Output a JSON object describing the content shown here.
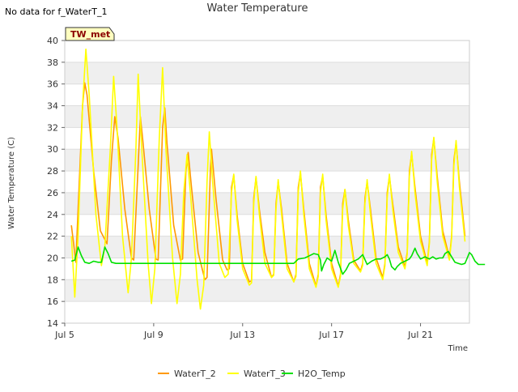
{
  "chart_data": {
    "type": "line",
    "title": "Water Temperature",
    "note": "No data for f_WaterT_1",
    "badge": "TW_met",
    "xlabel": "Time",
    "ylabel": "Water Temperature (C)",
    "xlim": [
      0,
      18.2
    ],
    "ylim": [
      14,
      40
    ],
    "x_ticks": [
      {
        "x": 0,
        "label": "Jul 5"
      },
      {
        "x": 4,
        "label": "Jul 9"
      },
      {
        "x": 8,
        "label": "Jul 13"
      },
      {
        "x": 12,
        "label": "Jul 17"
      },
      {
        "x": 16,
        "label": "Jul 21"
      }
    ],
    "y_ticks": [
      14,
      16,
      18,
      20,
      22,
      24,
      26,
      28,
      30,
      32,
      34,
      36,
      38,
      40
    ],
    "grid": true,
    "legend_position": "bottom-center",
    "colors": {
      "WaterT_2": "#ff9900",
      "WaterT_3": "#ffff00",
      "H2O_Temp": "#00e000",
      "band": "#efefef"
    },
    "series": [
      {
        "name": "WaterT_2",
        "points": [
          [
            0.3,
            23.0
          ],
          [
            0.5,
            19.6
          ],
          [
            0.8,
            34.0
          ],
          [
            0.9,
            36.1
          ],
          [
            1.0,
            35.0
          ],
          [
            1.3,
            28.0
          ],
          [
            1.6,
            22.5
          ],
          [
            1.9,
            21.3
          ],
          [
            2.1,
            29.0
          ],
          [
            2.25,
            33.0
          ],
          [
            2.4,
            31.0
          ],
          [
            2.7,
            24.5
          ],
          [
            3.0,
            20.0
          ],
          [
            3.1,
            19.8
          ],
          [
            3.3,
            28.5
          ],
          [
            3.4,
            33.0
          ],
          [
            3.5,
            31.0
          ],
          [
            3.8,
            24.5
          ],
          [
            4.1,
            19.9
          ],
          [
            4.2,
            19.8
          ],
          [
            4.4,
            32.0
          ],
          [
            4.5,
            33.8
          ],
          [
            4.6,
            30.5
          ],
          [
            4.9,
            23.0
          ],
          [
            5.2,
            19.8
          ],
          [
            5.3,
            19.9
          ],
          [
            5.45,
            28.0
          ],
          [
            5.55,
            29.7
          ],
          [
            5.7,
            26.5
          ],
          [
            6.0,
            20.5
          ],
          [
            6.3,
            18.0
          ],
          [
            6.4,
            18.2
          ],
          [
            6.55,
            28.0
          ],
          [
            6.6,
            30.0
          ],
          [
            6.8,
            25.5
          ],
          [
            7.1,
            19.8
          ],
          [
            7.3,
            18.9
          ],
          [
            7.4,
            19.0
          ],
          [
            7.5,
            26.5
          ],
          [
            7.6,
            27.6
          ],
          [
            7.75,
            24.0
          ],
          [
            8.0,
            19.5
          ],
          [
            8.3,
            17.8
          ],
          [
            8.4,
            17.9
          ],
          [
            8.5,
            25.5
          ],
          [
            8.6,
            27.4
          ],
          [
            8.75,
            24.5
          ],
          [
            9.0,
            20.5
          ],
          [
            9.3,
            18.2
          ],
          [
            9.4,
            18.5
          ],
          [
            9.5,
            25.0
          ],
          [
            9.6,
            27.0
          ],
          [
            9.75,
            24.5
          ],
          [
            10.0,
            19.5
          ],
          [
            10.3,
            17.8
          ],
          [
            10.4,
            18.5
          ],
          [
            10.5,
            26.5
          ],
          [
            10.6,
            27.8
          ],
          [
            10.75,
            24.5
          ],
          [
            11.0,
            19.5
          ],
          [
            11.3,
            17.4
          ],
          [
            11.4,
            18.5
          ],
          [
            11.5,
            26.5
          ],
          [
            11.6,
            27.5
          ],
          [
            11.75,
            24.0
          ],
          [
            12.0,
            19.5
          ],
          [
            12.3,
            17.4
          ],
          [
            12.4,
            18.5
          ],
          [
            12.5,
            25.0
          ],
          [
            12.6,
            26.3
          ],
          [
            12.75,
            23.5
          ],
          [
            13.0,
            19.8
          ],
          [
            13.3,
            18.8
          ],
          [
            13.4,
            19.5
          ],
          [
            13.5,
            25.5
          ],
          [
            13.6,
            27.0
          ],
          [
            13.75,
            24.5
          ],
          [
            14.0,
            20.0
          ],
          [
            14.3,
            18.2
          ],
          [
            14.4,
            19.5
          ],
          [
            14.5,
            26.0
          ],
          [
            14.6,
            27.5
          ],
          [
            14.75,
            25.0
          ],
          [
            15.0,
            21.0
          ],
          [
            15.3,
            19.2
          ],
          [
            15.4,
            20.5
          ],
          [
            15.5,
            28.0
          ],
          [
            15.6,
            29.6
          ],
          [
            15.75,
            26.5
          ],
          [
            16.0,
            22.0
          ],
          [
            16.3,
            19.5
          ],
          [
            16.4,
            21.5
          ],
          [
            16.5,
            29.5
          ],
          [
            16.6,
            31.0
          ],
          [
            16.75,
            27.5
          ],
          [
            17.0,
            22.5
          ],
          [
            17.3,
            20.0
          ],
          [
            17.4,
            22.0
          ],
          [
            17.5,
            29.0
          ],
          [
            17.6,
            30.6
          ],
          [
            17.75,
            27.0
          ],
          [
            18.0,
            22.0
          ]
        ]
      },
      {
        "name": "WaterT_3",
        "points": [
          [
            0.3,
            22.0
          ],
          [
            0.45,
            16.4
          ],
          [
            0.6,
            22.0
          ],
          [
            0.8,
            34.0
          ],
          [
            0.95,
            39.2
          ],
          [
            1.1,
            35.0
          ],
          [
            1.4,
            24.0
          ],
          [
            1.65,
            19.3
          ],
          [
            1.8,
            21.0
          ],
          [
            2.05,
            30.0
          ],
          [
            2.2,
            36.7
          ],
          [
            2.35,
            32.0
          ],
          [
            2.6,
            22.0
          ],
          [
            2.85,
            16.8
          ],
          [
            3.0,
            20.0
          ],
          [
            3.2,
            30.0
          ],
          [
            3.3,
            36.9
          ],
          [
            3.45,
            30.5
          ],
          [
            3.75,
            19.5
          ],
          [
            3.9,
            15.8
          ],
          [
            4.05,
            19.0
          ],
          [
            4.25,
            31.0
          ],
          [
            4.4,
            37.5
          ],
          [
            4.55,
            30.0
          ],
          [
            4.85,
            20.0
          ],
          [
            5.05,
            15.8
          ],
          [
            5.2,
            18.5
          ],
          [
            5.35,
            26.0
          ],
          [
            5.5,
            29.5
          ],
          [
            5.65,
            26.0
          ],
          [
            5.95,
            18.0
          ],
          [
            6.1,
            15.3
          ],
          [
            6.25,
            17.5
          ],
          [
            6.4,
            27.0
          ],
          [
            6.5,
            31.6
          ],
          [
            6.65,
            27.0
          ],
          [
            6.95,
            19.5
          ],
          [
            7.2,
            18.2
          ],
          [
            7.35,
            18.5
          ],
          [
            7.5,
            26.0
          ],
          [
            7.6,
            27.7
          ],
          [
            7.75,
            23.5
          ],
          [
            8.0,
            19.0
          ],
          [
            8.3,
            17.5
          ],
          [
            8.4,
            17.7
          ],
          [
            8.5,
            25.0
          ],
          [
            8.6,
            27.5
          ],
          [
            8.75,
            24.0
          ],
          [
            9.0,
            19.5
          ],
          [
            9.3,
            18.2
          ],
          [
            9.4,
            18.4
          ],
          [
            9.5,
            24.5
          ],
          [
            9.6,
            27.2
          ],
          [
            9.75,
            24.0
          ],
          [
            10.0,
            19.0
          ],
          [
            10.3,
            17.8
          ],
          [
            10.4,
            18.3
          ],
          [
            10.5,
            26.0
          ],
          [
            10.6,
            28.0
          ],
          [
            10.75,
            24.0
          ],
          [
            11.0,
            19.0
          ],
          [
            11.3,
            17.3
          ],
          [
            11.4,
            18.3
          ],
          [
            11.5,
            26.0
          ],
          [
            11.6,
            27.7
          ],
          [
            11.75,
            23.5
          ],
          [
            12.0,
            19.0
          ],
          [
            12.3,
            17.3
          ],
          [
            12.4,
            18.3
          ],
          [
            12.5,
            24.5
          ],
          [
            12.6,
            26.3
          ],
          [
            12.75,
            23.0
          ],
          [
            13.0,
            19.5
          ],
          [
            13.3,
            18.7
          ],
          [
            13.4,
            19.3
          ],
          [
            13.5,
            25.0
          ],
          [
            13.6,
            27.2
          ],
          [
            13.75,
            24.0
          ],
          [
            14.0,
            19.5
          ],
          [
            14.3,
            18.0
          ],
          [
            14.4,
            19.3
          ],
          [
            14.5,
            25.5
          ],
          [
            14.6,
            27.7
          ],
          [
            14.75,
            24.5
          ],
          [
            15.0,
            20.5
          ],
          [
            15.3,
            19.0
          ],
          [
            15.4,
            20.3
          ],
          [
            15.5,
            27.5
          ],
          [
            15.6,
            29.8
          ],
          [
            15.75,
            26.0
          ],
          [
            16.0,
            21.5
          ],
          [
            16.3,
            19.3
          ],
          [
            16.4,
            21.3
          ],
          [
            16.5,
            29.0
          ],
          [
            16.6,
            31.1
          ],
          [
            16.75,
            27.0
          ],
          [
            17.0,
            22.0
          ],
          [
            17.3,
            19.8
          ],
          [
            17.4,
            21.8
          ],
          [
            17.5,
            28.5
          ],
          [
            17.6,
            30.8
          ],
          [
            17.75,
            26.5
          ],
          [
            18.0,
            21.5
          ]
        ]
      },
      {
        "name": "H2O_Temp",
        "points": [
          [
            0.3,
            19.7
          ],
          [
            0.45,
            19.8
          ],
          [
            0.6,
            21.0
          ],
          [
            0.75,
            20.2
          ],
          [
            0.9,
            19.6
          ],
          [
            1.1,
            19.5
          ],
          [
            1.3,
            19.7
          ],
          [
            1.5,
            19.6
          ],
          [
            1.65,
            19.6
          ],
          [
            1.8,
            21.0
          ],
          [
            1.95,
            20.4
          ],
          [
            2.1,
            19.6
          ],
          [
            2.3,
            19.5
          ],
          [
            2.5,
            19.5
          ],
          [
            3.0,
            19.5
          ],
          [
            4.0,
            19.5
          ],
          [
            5.0,
            19.5
          ],
          [
            6.0,
            19.5
          ],
          [
            7.0,
            19.5
          ],
          [
            8.0,
            19.5
          ],
          [
            9.0,
            19.5
          ],
          [
            9.5,
            19.5
          ],
          [
            10.0,
            19.5
          ],
          [
            10.3,
            19.5
          ],
          [
            10.5,
            19.9
          ],
          [
            10.8,
            20.0
          ],
          [
            11.0,
            20.2
          ],
          [
            11.2,
            20.4
          ],
          [
            11.4,
            20.3
          ],
          [
            11.5,
            19.8
          ],
          [
            11.55,
            18.8
          ],
          [
            11.65,
            19.4
          ],
          [
            11.8,
            20.0
          ],
          [
            12.0,
            19.7
          ],
          [
            12.15,
            20.7
          ],
          [
            12.3,
            19.6
          ],
          [
            12.5,
            18.5
          ],
          [
            12.65,
            18.9
          ],
          [
            12.8,
            19.5
          ],
          [
            13.0,
            19.7
          ],
          [
            13.2,
            19.9
          ],
          [
            13.4,
            20.3
          ],
          [
            13.6,
            19.4
          ],
          [
            13.8,
            19.7
          ],
          [
            14.0,
            19.9
          ],
          [
            14.2,
            19.9
          ],
          [
            14.4,
            20.1
          ],
          [
            14.5,
            20.3
          ],
          [
            14.6,
            19.9
          ],
          [
            14.7,
            19.2
          ],
          [
            14.85,
            18.9
          ],
          [
            14.95,
            19.2
          ],
          [
            15.1,
            19.5
          ],
          [
            15.3,
            19.7
          ],
          [
            15.5,
            19.9
          ],
          [
            15.6,
            20.2
          ],
          [
            15.75,
            20.9
          ],
          [
            15.85,
            20.4
          ],
          [
            16.0,
            19.9
          ],
          [
            16.2,
            20.1
          ],
          [
            16.4,
            19.9
          ],
          [
            16.55,
            20.1
          ],
          [
            16.7,
            19.9
          ],
          [
            16.85,
            20.0
          ],
          [
            17.0,
            20.0
          ],
          [
            17.1,
            20.4
          ],
          [
            17.25,
            20.6
          ],
          [
            17.4,
            20.1
          ],
          [
            17.55,
            19.6
          ],
          [
            17.7,
            19.5
          ],
          [
            17.85,
            19.4
          ],
          [
            18.0,
            19.5
          ],
          [
            18.1,
            20.0
          ],
          [
            18.2,
            20.5
          ],
          [
            18.3,
            20.3
          ],
          [
            18.45,
            19.7
          ],
          [
            18.6,
            19.4
          ],
          [
            18.8,
            19.4
          ],
          [
            18.9,
            19.4
          ]
        ]
      }
    ]
  }
}
